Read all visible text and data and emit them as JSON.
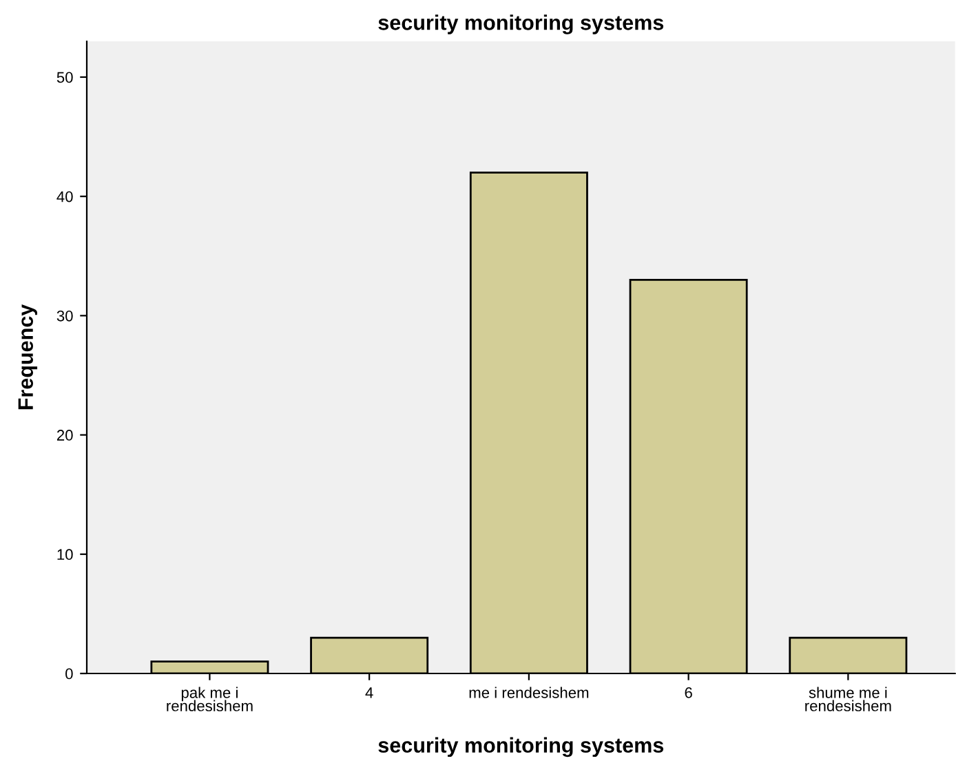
{
  "chart_data": {
    "type": "bar",
    "title": "security monitoring systems",
    "xlabel": "security monitoring systems",
    "ylabel": "Frequency",
    "categories": [
      "pak me i\nrendesishem",
      "4",
      "me i rendesishem",
      "6",
      "shume me i\nrendesishem"
    ],
    "values": [
      1,
      3,
      42,
      33,
      3
    ],
    "color": "#d3ce97",
    "ylim": [
      0,
      53
    ],
    "yticks": [
      0,
      10,
      20,
      30,
      40,
      50
    ],
    "grid": false
  }
}
